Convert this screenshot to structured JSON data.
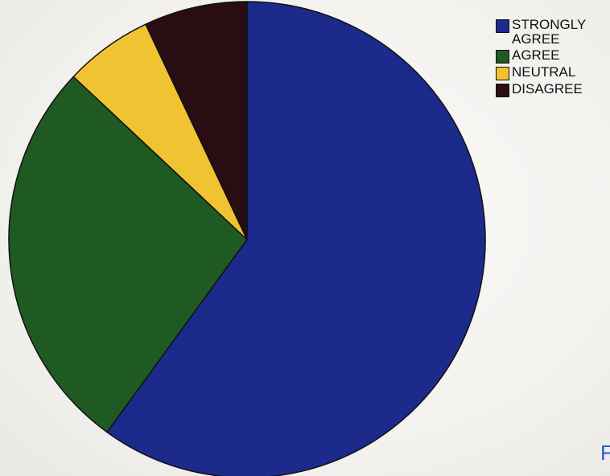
{
  "chart_data": {
    "type": "pie",
    "title": "",
    "categories": [
      "STRONGLY AGREE",
      "AGREE",
      "NEUTRAL",
      "DISAGREE"
    ],
    "values": [
      60,
      27,
      6,
      7
    ],
    "colors": [
      "#1c2a8c",
      "#1f5a22",
      "#f0c332",
      "#2a0d12"
    ],
    "legend_position": "top-right"
  },
  "edge_text": "F"
}
